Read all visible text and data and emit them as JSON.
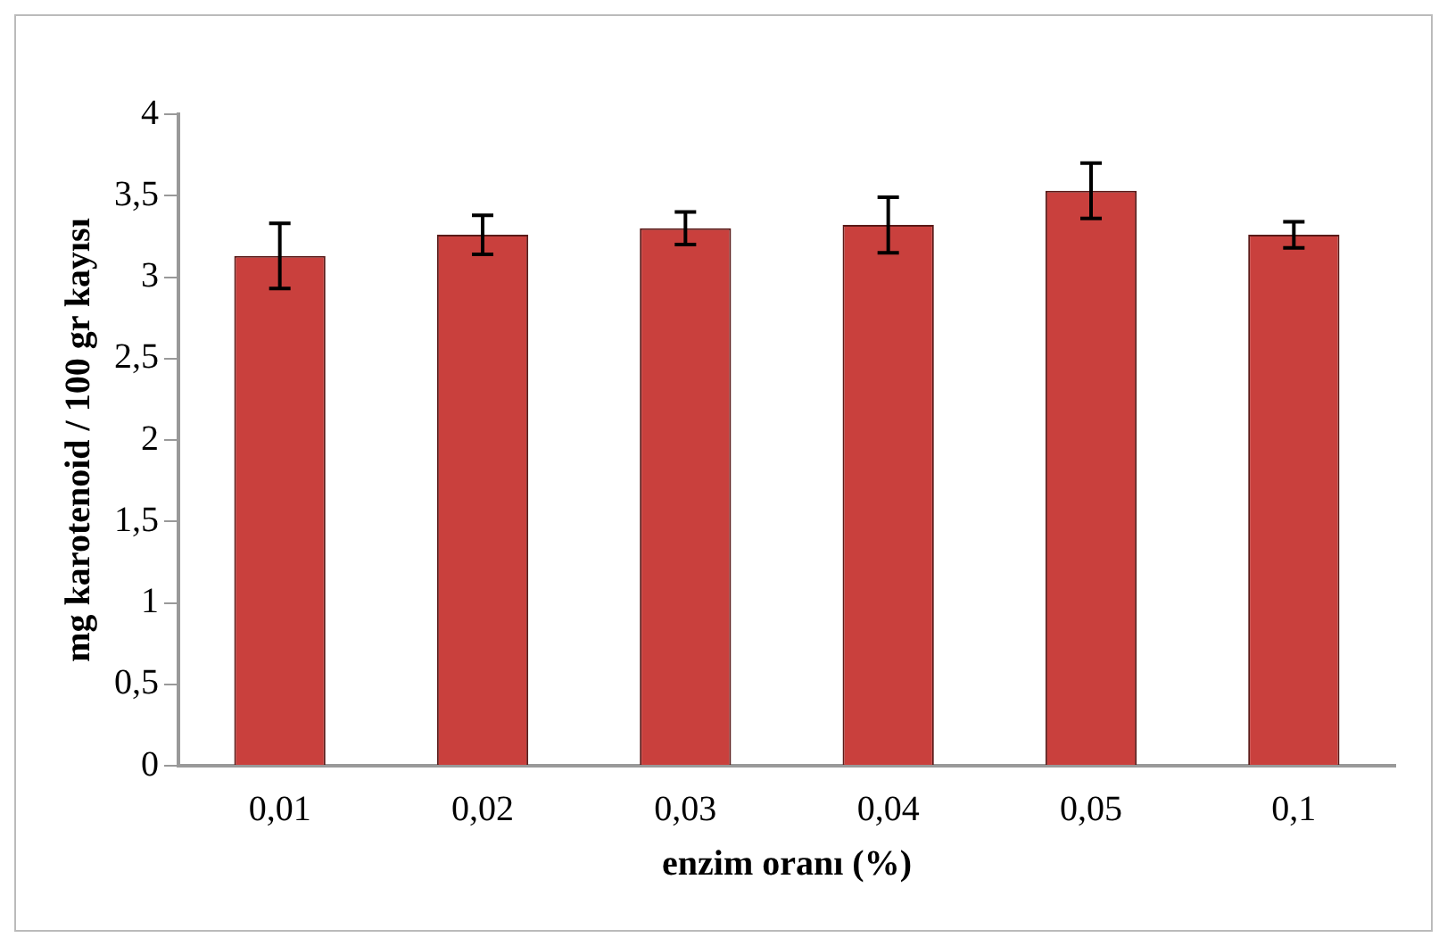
{
  "chart_data": {
    "type": "bar",
    "xlabel": "enzim oranı (%)",
    "ylabel": "mg karotenoid / 100 gr kayısı",
    "categories": [
      "0,01",
      "0,02",
      "0,03",
      "0,04",
      "0,05",
      "0,1"
    ],
    "values": [
      3.13,
      3.26,
      3.3,
      3.32,
      3.53,
      3.26
    ],
    "errors": [
      0.2,
      0.12,
      0.1,
      0.17,
      0.17,
      0.08
    ],
    "color": "#c9403d",
    "ylim": [
      0,
      4
    ],
    "yticks": [
      0,
      {
        "value": 0.5,
        "label": "0,5"
      },
      1,
      {
        "value": 1.5,
        "label": "1,5"
      },
      2,
      {
        "value": 2.5,
        "label": "2,5"
      },
      3,
      {
        "value": 3.5,
        "label": "3,5"
      },
      4
    ],
    "grid": false,
    "legend": false
  }
}
